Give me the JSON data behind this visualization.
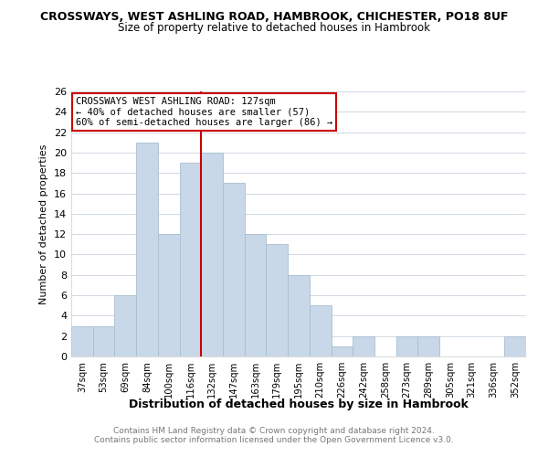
{
  "title_line1": "CROSSWAYS, WEST ASHLING ROAD, HAMBROOK, CHICHESTER, PO18 8UF",
  "title_line2": "Size of property relative to detached houses in Hambrook",
  "xlabel": "Distribution of detached houses by size in Hambrook",
  "ylabel": "Number of detached properties",
  "bar_color": "#c8d8e8",
  "bar_edge_color": "#a8bece",
  "categories": [
    "37sqm",
    "53sqm",
    "69sqm",
    "84sqm",
    "100sqm",
    "116sqm",
    "132sqm",
    "147sqm",
    "163sqm",
    "179sqm",
    "195sqm",
    "210sqm",
    "226sqm",
    "242sqm",
    "258sqm",
    "273sqm",
    "289sqm",
    "305sqm",
    "321sqm",
    "336sqm",
    "352sqm"
  ],
  "values": [
    3,
    3,
    6,
    21,
    12,
    19,
    20,
    17,
    12,
    11,
    8,
    5,
    1,
    2,
    0,
    2,
    2,
    0,
    0,
    0,
    2
  ],
  "ylim": [
    0,
    26
  ],
  "yticks": [
    0,
    2,
    4,
    6,
    8,
    10,
    12,
    14,
    16,
    18,
    20,
    22,
    24,
    26
  ],
  "property_line_x": 6,
  "annotation_title": "CROSSWAYS WEST ASHLING ROAD: 127sqm",
  "annotation_line2": "← 40% of detached houses are smaller (57)",
  "annotation_line3": "60% of semi-detached houses are larger (86) →",
  "vline_color": "#cc0000",
  "annotation_box_color": "#ffffff",
  "annotation_box_edge": "#cc0000",
  "footer_line1": "Contains HM Land Registry data © Crown copyright and database right 2024.",
  "footer_line2": "Contains public sector information licensed under the Open Government Licence v3.0.",
  "background_color": "#ffffff",
  "grid_color": "#d0d8e4"
}
